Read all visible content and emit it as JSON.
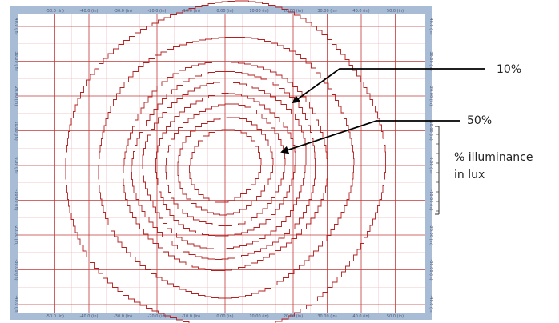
{
  "colors": {
    "frame": "#a9bcd6",
    "grid": "#c23a3a",
    "contour": "#b32020",
    "minor_grid": "#efc8c8",
    "callout": "#000000",
    "axis_text": "#4a5a7a"
  },
  "axes": {
    "x_ticks": [
      "-50.0 (in)",
      "-40.0 (in)",
      "-30.0 (in)",
      "-20.0 (in)",
      "-10.0 (in)",
      "0.00 (in)",
      "10.00 (in)",
      "20.00 (in)",
      "30.00 (in)",
      "40.0 (in)",
      "50.0 (in)"
    ],
    "y_ticks": [
      "40.0 (in)",
      "30.00 (in)",
      "20.00 (in)",
      "10.00 (in)",
      "0.00 (in)",
      "-10.00 (in)",
      "-20.00 (in)",
      "-30.00 (in)",
      "-40.0 (in)"
    ]
  },
  "contours": {
    "count": 9,
    "radii_in": [
      10.5,
      14,
      17.5,
      20.5,
      24,
      27,
      30,
      37.5,
      47
    ]
  },
  "callouts": {
    "outer_label": "10%",
    "inner_label": "50%",
    "legend_line1": "% illuminance",
    "legend_line2": "in lux"
  }
}
